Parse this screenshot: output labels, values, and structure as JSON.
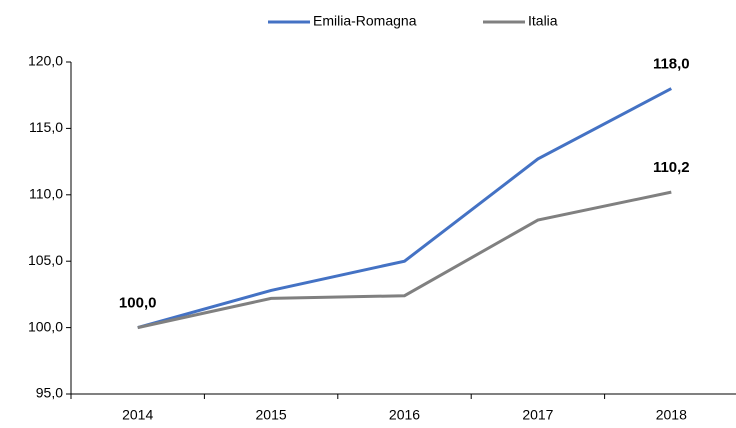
{
  "chart_data": {
    "type": "line",
    "categories": [
      "2014",
      "2015",
      "2016",
      "2017",
      "2018"
    ],
    "series": [
      {
        "name": "Emilia-Romagna",
        "color": "#4472c4",
        "values": [
          100.0,
          102.8,
          105.0,
          112.7,
          118.0
        ],
        "value_labels": [
          "100,0",
          null,
          null,
          null,
          "118,0"
        ]
      },
      {
        "name": "Italia",
        "color": "#808080",
        "values": [
          100.0,
          102.2,
          102.4,
          108.1,
          110.2
        ],
        "value_labels": [
          null,
          null,
          null,
          null,
          "110,2"
        ]
      }
    ],
    "ylim": [
      95,
      120
    ],
    "yticks": [
      {
        "value": 95,
        "label": "95,0"
      },
      {
        "value": 100,
        "label": "100,0"
      },
      {
        "value": 105,
        "label": "105,0"
      },
      {
        "value": 110,
        "label": "110,0"
      },
      {
        "value": 115,
        "label": "115,0"
      },
      {
        "value": 120,
        "label": "120,0"
      }
    ],
    "grid": false,
    "legend": "top"
  }
}
